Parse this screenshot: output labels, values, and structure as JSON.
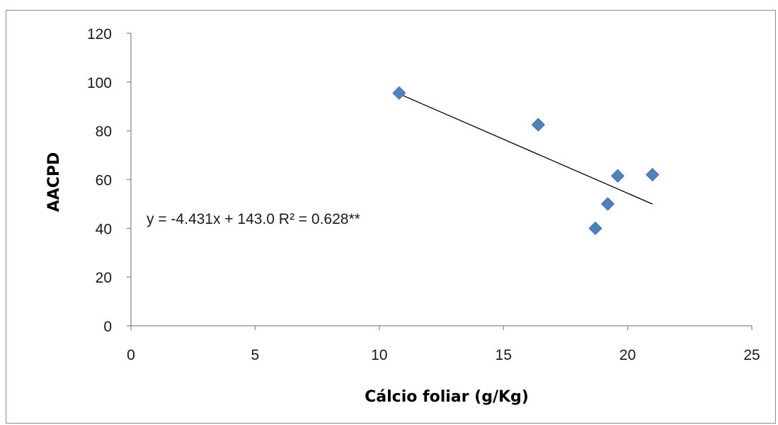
{
  "chart_data": {
    "type": "scatter",
    "xlabel": "Cálcio foliar (g/Kg)",
    "ylabel": "AACPD",
    "xlim": [
      0,
      25
    ],
    "ylim": [
      0,
      120
    ],
    "x_ticks": [
      0,
      5,
      10,
      15,
      20,
      25
    ],
    "y_ticks": [
      0,
      20,
      40,
      60,
      80,
      100,
      120
    ],
    "grid": false,
    "legend": "none",
    "points": [
      {
        "x": 10.8,
        "y": 95.5
      },
      {
        "x": 16.4,
        "y": 82.5
      },
      {
        "x": 19.6,
        "y": 61.5
      },
      {
        "x": 21.0,
        "y": 62.0
      },
      {
        "x": 19.2,
        "y": 50.0
      },
      {
        "x": 18.7,
        "y": 40.0
      }
    ],
    "trendline": {
      "slope": -4.431,
      "intercept": 143.0,
      "x_range": [
        10.8,
        21.0
      ]
    },
    "annotation": "y = -4.431x + 143.0  R² = 0.628**",
    "marker_color": "#4f81bd",
    "trendline_color": "#000000"
  }
}
